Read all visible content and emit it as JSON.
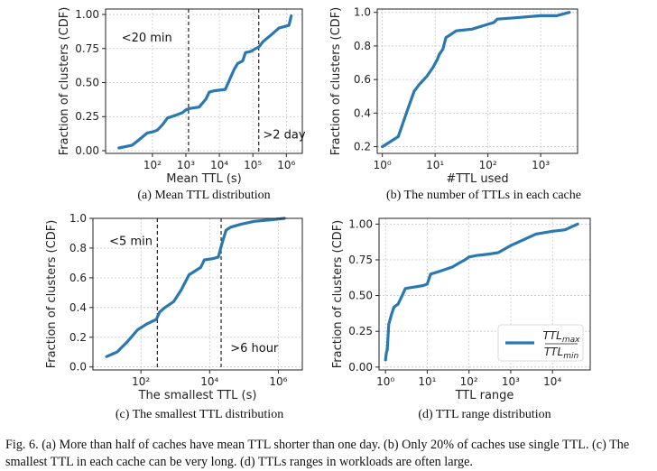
{
  "figure_caption": "Fig. 6.  (a) More than half of caches have mean TTL shorter than one day. (b) Only 20% of caches use single TTL. (c) The smallest TTL in each cache can be very long. (d) TTLs ranges in workloads are often large.",
  "chart_data": [
    {
      "id": "a",
      "type": "line",
      "caption": "(a) Mean TTL distribution",
      "xlabel": "Mean TTL (s)",
      "ylabel": "Fraction of clusters (CDF)",
      "xscale": "log",
      "xlim": [
        4,
        3000000
      ],
      "ylim": [
        -0.02,
        1.04
      ],
      "xticks": [
        {
          "v": 100,
          "label": "10²"
        },
        {
          "v": 1000,
          "label": "10³"
        },
        {
          "v": 10000,
          "label": "10⁴"
        },
        {
          "v": 100000,
          "label": "10⁵"
        },
        {
          "v": 1000000,
          "label": "10⁶"
        }
      ],
      "yticks": [
        {
          "v": 0,
          "label": "0.00"
        },
        {
          "v": 0.25,
          "label": "0.25"
        },
        {
          "v": 0.5,
          "label": "0.50"
        },
        {
          "v": 0.75,
          "label": "0.75"
        },
        {
          "v": 1,
          "label": "1.00"
        }
      ],
      "vlines": [
        1200,
        150000
      ],
      "annotations": [
        {
          "text": "<20 min",
          "x": 12,
          "y": 0.8
        },
        {
          "text": ">2 day",
          "x": 200000,
          "y": 0.09
        }
      ],
      "x": [
        10,
        25,
        40,
        70,
        110,
        140,
        200,
        280,
        500,
        800,
        1000,
        1300,
        2500,
        4000,
        5000,
        7000,
        15000,
        20000,
        28000,
        35000,
        50000,
        60000,
        90000,
        120000,
        150000,
        200000,
        350000,
        600000,
        1200000,
        1400000
      ],
      "y": [
        0.02,
        0.04,
        0.08,
        0.13,
        0.14,
        0.15,
        0.19,
        0.24,
        0.26,
        0.28,
        0.3,
        0.31,
        0.32,
        0.38,
        0.43,
        0.44,
        0.45,
        0.52,
        0.6,
        0.64,
        0.66,
        0.72,
        0.73,
        0.75,
        0.76,
        0.8,
        0.85,
        0.9,
        0.92,
        0.99
      ]
    },
    {
      "id": "b",
      "type": "line",
      "caption": "(b) The number of TTLs in each cache",
      "xlabel": "#TTL used",
      "ylabel": "Fraction of clusters (CDF)",
      "xscale": "log",
      "xlim": [
        0.8,
        5000
      ],
      "ylim": [
        0.16,
        1.02
      ],
      "xticks": [
        {
          "v": 1,
          "label": "10⁰"
        },
        {
          "v": 10,
          "label": "10¹"
        },
        {
          "v": 100,
          "label": "10²"
        },
        {
          "v": 1000,
          "label": "10³"
        }
      ],
      "yticks": [
        {
          "v": 0.2,
          "label": "0.2"
        },
        {
          "v": 0.4,
          "label": "0.4"
        },
        {
          "v": 0.6,
          "label": "0.6"
        },
        {
          "v": 0.8,
          "label": "0.8"
        },
        {
          "v": 1,
          "label": "1.0"
        }
      ],
      "vlines": [],
      "annotations": [],
      "x": [
        1,
        2,
        3,
        4,
        5,
        7,
        9,
        11,
        12,
        14,
        16,
        18,
        25,
        50,
        80,
        130,
        150,
        400,
        1000,
        2000,
        3500
      ],
      "y": [
        0.2,
        0.26,
        0.42,
        0.53,
        0.57,
        0.62,
        0.67,
        0.72,
        0.75,
        0.78,
        0.85,
        0.86,
        0.89,
        0.9,
        0.92,
        0.94,
        0.96,
        0.97,
        0.98,
        0.98,
        1.0
      ]
    },
    {
      "id": "c",
      "type": "line",
      "caption": "(c) The smallest TTL distribution",
      "xlabel": "The smallest TTL (s)",
      "ylabel": "Fraction of clusters (CDF)",
      "xscale": "log",
      "xlim": [
        4,
        5000000
      ],
      "ylim": [
        -0.02,
        1.0
      ],
      "xticks": [
        {
          "v": 100,
          "label": "10²"
        },
        {
          "v": 10000,
          "label": "10⁴"
        },
        {
          "v": 1000000,
          "label": "10⁶"
        }
      ],
      "yticks": [
        {
          "v": 0,
          "label": "0.0"
        },
        {
          "v": 0.2,
          "label": "0.2"
        },
        {
          "v": 0.4,
          "label": "0.4"
        },
        {
          "v": 0.6,
          "label": "0.6"
        },
        {
          "v": 0.8,
          "label": "0.8"
        },
        {
          "v": 1,
          "label": "1.0"
        }
      ],
      "vlines": [
        300,
        21600
      ],
      "annotations": [
        {
          "text": "<5 min",
          "x": 12,
          "y": 0.82
        },
        {
          "text": ">6 hour",
          "x": 40000,
          "y": 0.1
        }
      ],
      "x": [
        10,
        20,
        40,
        80,
        150,
        280,
        350,
        500,
        900,
        1500,
        2500,
        4000,
        5500,
        7000,
        13000,
        18000,
        21000,
        25000,
        30000,
        40000,
        80000,
        200000,
        600000,
        1500000
      ],
      "y": [
        0.07,
        0.1,
        0.17,
        0.25,
        0.29,
        0.32,
        0.37,
        0.4,
        0.44,
        0.52,
        0.62,
        0.65,
        0.67,
        0.72,
        0.73,
        0.74,
        0.8,
        0.86,
        0.92,
        0.94,
        0.96,
        0.98,
        0.99,
        1.0
      ]
    },
    {
      "id": "d",
      "type": "line",
      "caption": "(d) TTL range distribution",
      "xlabel": "TTL range",
      "ylabel": "Fraction of clusters (CDF)",
      "xscale": "log",
      "xlim": [
        0.7,
        80000
      ],
      "ylim": [
        -0.02,
        1.04
      ],
      "xticks": [
        {
          "v": 1,
          "label": "10⁰"
        },
        {
          "v": 10,
          "label": "10¹"
        },
        {
          "v": 100,
          "label": "10²"
        },
        {
          "v": 1000,
          "label": "10³"
        },
        {
          "v": 10000,
          "label": "10⁴"
        }
      ],
      "yticks": [
        {
          "v": 0,
          "label": "0.00"
        },
        {
          "v": 0.25,
          "label": "0.25"
        },
        {
          "v": 0.5,
          "label": "0.50"
        },
        {
          "v": 0.75,
          "label": "0.75"
        },
        {
          "v": 1,
          "label": "1.00"
        }
      ],
      "vlines": [],
      "annotations": [],
      "legend": {
        "position": "lower right",
        "series_name": "TTLmax / TTLmin"
      },
      "x": [
        1,
        1.05,
        1.1,
        1.2,
        1.4,
        1.6,
        2,
        2.5,
        3,
        5,
        8,
        10,
        12,
        20,
        40,
        60,
        80,
        100,
        150,
        300,
        500,
        1000,
        2000,
        4000,
        10000,
        20000,
        40000
      ],
      "y": [
        0.05,
        0.1,
        0.12,
        0.3,
        0.37,
        0.42,
        0.44,
        0.5,
        0.55,
        0.56,
        0.57,
        0.58,
        0.65,
        0.67,
        0.7,
        0.73,
        0.75,
        0.77,
        0.78,
        0.79,
        0.8,
        0.85,
        0.89,
        0.93,
        0.95,
        0.96,
        1.0
      ]
    }
  ]
}
